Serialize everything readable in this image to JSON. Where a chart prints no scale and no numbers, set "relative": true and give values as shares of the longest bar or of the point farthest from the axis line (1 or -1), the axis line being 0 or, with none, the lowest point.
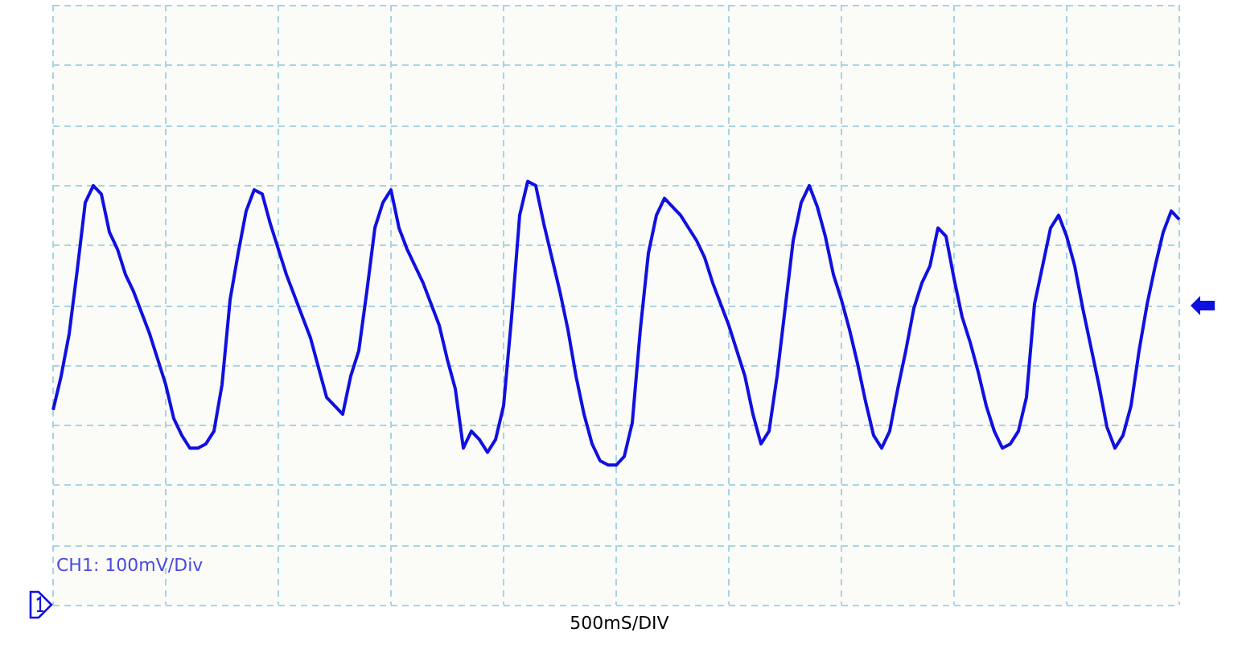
{
  "chart_data": {
    "type": "line",
    "relative": true,
    "grid": true,
    "line_style": "solid",
    "marker": "none",
    "categories": [
      null,
      null,
      null,
      null,
      null,
      null,
      null,
      null,
      null,
      null,
      null,
      null,
      null,
      null,
      null,
      null,
      null,
      null,
      null,
      null,
      null,
      null,
      null,
      null,
      null,
      null,
      null,
      null,
      null,
      null,
      null,
      null,
      null,
      null,
      null,
      null,
      null,
      null,
      null,
      null,
      null,
      null,
      null,
      null,
      null,
      null,
      null,
      null,
      null,
      null,
      null,
      null,
      null,
      null,
      null,
      null,
      null,
      null,
      null,
      null,
      null,
      null,
      null,
      null,
      null,
      null,
      null,
      null,
      null,
      null,
      null,
      null,
      null,
      null,
      null,
      null,
      null,
      null,
      null,
      null,
      null,
      null,
      null,
      null,
      null,
      null,
      null,
      null,
      null,
      null,
      null,
      null,
      null,
      null,
      null,
      null,
      null,
      null,
      null,
      null,
      null,
      null,
      null,
      null,
      null,
      null,
      null,
      null,
      null,
      null,
      null,
      null,
      null,
      null,
      null,
      null,
      null,
      null,
      null,
      null,
      null,
      null,
      null,
      null,
      null,
      null,
      null,
      null,
      null,
      null,
      null,
      null,
      null,
      null,
      null,
      null,
      null,
      null,
      null,
      null,
      null
    ],
    "series": [
      {
        "color": "#1010e0",
        "values": [
          0.46,
          0.54,
          0.64,
          0.79,
          0.95,
          0.99,
          0.97,
          0.88,
          0.84,
          0.78,
          0.74,
          0.69,
          0.64,
          0.58,
          0.52,
          0.44,
          0.4,
          0.37,
          0.37,
          0.38,
          0.41,
          0.52,
          0.72,
          0.83,
          0.93,
          0.98,
          0.97,
          0.9,
          0.84,
          0.78,
          0.73,
          0.68,
          0.63,
          0.56,
          0.49,
          0.47,
          0.45,
          0.54,
          0.6,
          0.74,
          0.89,
          0.95,
          0.98,
          0.89,
          0.84,
          0.8,
          0.76,
          0.71,
          0.66,
          0.58,
          0.51,
          0.37,
          0.41,
          0.39,
          0.36,
          0.39,
          0.47,
          0.68,
          0.92,
          1.0,
          0.99,
          0.9,
          0.82,
          0.74,
          0.65,
          0.54,
          0.45,
          0.38,
          0.34,
          0.33,
          0.33,
          0.35,
          0.43,
          0.65,
          0.83,
          0.92,
          0.96,
          0.94,
          0.92,
          0.89,
          0.86,
          0.82,
          0.76,
          0.71,
          0.66,
          0.6,
          0.54,
          0.45,
          0.38,
          0.41,
          0.54,
          0.7,
          0.86,
          0.95,
          0.99,
          0.94,
          0.87,
          0.78,
          0.72,
          0.65,
          0.57,
          0.48,
          0.4,
          0.37,
          0.41,
          0.51,
          0.6,
          0.7,
          0.76,
          0.8,
          0.89,
          0.87,
          0.77,
          0.68,
          0.62,
          0.55,
          0.47,
          0.41,
          0.37,
          0.38,
          0.41,
          0.49,
          0.71,
          0.8,
          0.89,
          0.92,
          0.87,
          0.8,
          0.7,
          0.61,
          0.52,
          0.42,
          0.37,
          0.4,
          0.47,
          0.6,
          0.71,
          0.8,
          0.88,
          0.93,
          0.91
        ]
      }
    ],
    "annotations": [
      "CH1: 100mV/Div",
      "500mS/DIV"
    ]
  }
}
